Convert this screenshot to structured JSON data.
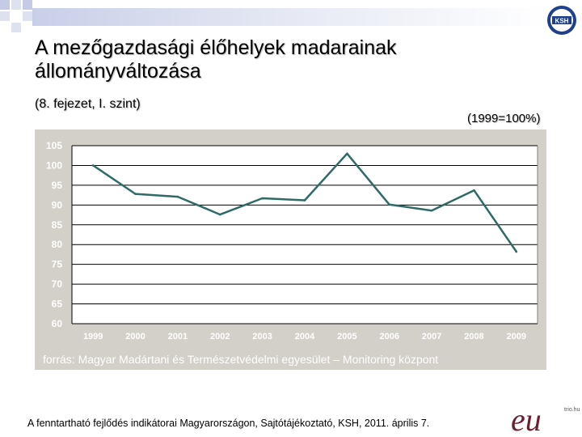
{
  "slide": {
    "title": "A mezőgazdasági élőhelyek madarainak állományváltozása",
    "subtitle": "(8. fejezet, I. szint)",
    "base_note": "(1999=100%)",
    "source": "forrás: Magyar Madártani és Természetvédelmi egyesület – Monitoring központ",
    "footer": "A fenntartható fejlődés indikátorai Magyarországon, Sajtótájékoztató, KSH, 2011. április 7.",
    "ksh_logo_text": "KSH",
    "eu_logo_text": "eu",
    "trio_text": "trio.hu"
  },
  "colors": {
    "line": "#2e6b66",
    "panel": "#d2d0c8",
    "plot_bg": "#ffffff",
    "axis_text": "#ffffff",
    "grid": "#000000",
    "band": "#c9cfe8",
    "logo_blue": "#1f3f8f"
  },
  "chart_data": {
    "type": "line",
    "categories": [
      "1999",
      "2000",
      "2001",
      "2002",
      "2003",
      "2004",
      "2005",
      "2006",
      "2007",
      "2008",
      "2009"
    ],
    "values": [
      100,
      92.8,
      92.1,
      87.6,
      91.7,
      91.2,
      103,
      90.1,
      88.6,
      93.7,
      78.2
    ],
    "ylim": [
      60,
      105
    ],
    "yticks": [
      "105",
      "100",
      "95",
      "90",
      "85",
      "80",
      "75",
      "70",
      "65",
      "60"
    ],
    "grid": true,
    "title": "",
    "xlabel": "",
    "ylabel": ""
  }
}
